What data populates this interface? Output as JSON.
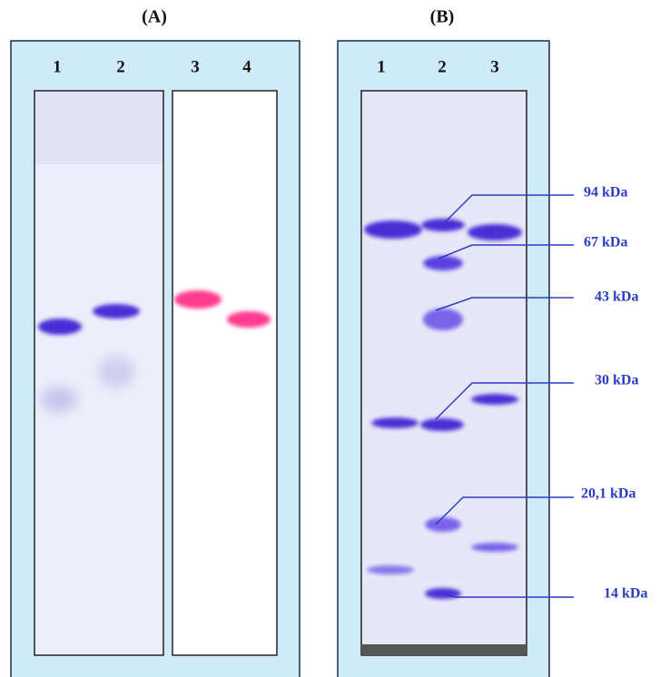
{
  "panel_a": {
    "label": "(A)",
    "lanes": [
      "1",
      "2",
      "3",
      "4"
    ]
  },
  "panel_b": {
    "label": "(B)",
    "lanes": [
      "1",
      "2",
      "3"
    ],
    "markers": [
      "94 kDa",
      "67 kDa",
      "43 kDa",
      "30 kDa",
      "20,1 kDa",
      "14 kDa"
    ]
  }
}
